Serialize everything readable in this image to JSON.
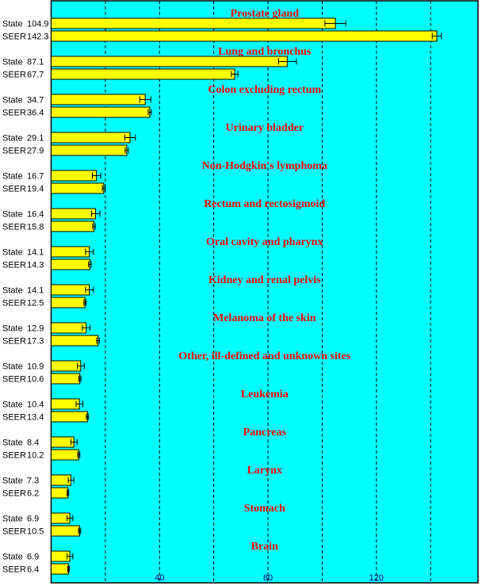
{
  "chart_data": {
    "type": "bar",
    "orientation": "horizontal",
    "xlim": [
      0,
      157.5
    ],
    "xticks": [
      40,
      80,
      120
    ],
    "gridlines": [
      20,
      40,
      60,
      80,
      100,
      120,
      140
    ],
    "grid": true,
    "colors": {
      "background": "#00ffff",
      "bar": "#ffff00",
      "title": "#ff0000",
      "tick": "#000080"
    },
    "series_labels": [
      "State",
      "SEER"
    ],
    "groups": [
      {
        "title": "Prostate gland",
        "state": 104.9,
        "state_ci": [
          101.0,
          108.7
        ],
        "seer": 142.3,
        "seer_ci": [
          140.6,
          144.0
        ]
      },
      {
        "title": "Lung and bronchus",
        "state": 87.1,
        "state_ci": [
          83.9,
          90.5
        ],
        "seer": 67.7,
        "seer_ci": [
          66.5,
          68.9
        ]
      },
      {
        "title": "Colon excluding rectum",
        "state": 34.7,
        "state_ci": [
          32.7,
          36.8
        ],
        "seer": 36.4,
        "seer_ci": [
          35.8,
          37.0
        ]
      },
      {
        "title": "Urinary bladder",
        "state": 29.1,
        "state_ci": [
          27.2,
          31.1
        ],
        "seer": 27.9,
        "seer_ci": [
          27.3,
          28.5
        ]
      },
      {
        "title": "Non-Hodgkin's lymphoma",
        "state": 16.7,
        "state_ci": [
          15.2,
          18.3
        ],
        "seer": 19.4,
        "seer_ci": [
          18.9,
          19.9
        ]
      },
      {
        "title": "Rectum and rectosigmoid",
        "state": 16.4,
        "state_ci": [
          14.9,
          18.0
        ],
        "seer": 15.8,
        "seer_ci": [
          15.3,
          16.3
        ]
      },
      {
        "title": "Oral cavity and pharynx",
        "state": 14.1,
        "state_ci": [
          12.7,
          15.6
        ],
        "seer": 14.3,
        "seer_ci": [
          13.8,
          14.8
        ]
      },
      {
        "title": "Kidney and renal pelvis",
        "state": 14.1,
        "state_ci": [
          12.7,
          15.6
        ],
        "seer": 12.5,
        "seer_ci": [
          12.1,
          12.9
        ]
      },
      {
        "title": "Melanoma of the skin",
        "state": 12.9,
        "state_ci": [
          11.5,
          14.4
        ],
        "seer": 17.3,
        "seer_ci": [
          16.8,
          17.8
        ]
      },
      {
        "title": "Other, ill-defined and unknown sites",
        "state": 10.9,
        "state_ci": [
          9.7,
          12.2
        ],
        "seer": 10.6,
        "seer_ci": [
          10.2,
          11.0
        ]
      },
      {
        "title": "Leukemia",
        "state": 10.4,
        "state_ci": [
          9.2,
          11.7
        ],
        "seer": 13.4,
        "seer_ci": [
          13.0,
          13.8
        ]
      },
      {
        "title": "Pancreas",
        "state": 8.4,
        "state_ci": [
          7.3,
          9.6
        ],
        "seer": 10.2,
        "seer_ci": [
          9.8,
          10.6
        ]
      },
      {
        "title": "Larynx",
        "state": 7.3,
        "state_ci": [
          6.3,
          8.4
        ],
        "seer": 6.2,
        "seer_ci": [
          5.9,
          6.5
        ]
      },
      {
        "title": "Stomach",
        "state": 6.9,
        "state_ci": [
          5.9,
          8.0
        ],
        "seer": 10.5,
        "seer_ci": [
          10.1,
          10.9
        ]
      },
      {
        "title": "Brain",
        "state": 6.9,
        "state_ci": [
          5.9,
          8.0
        ],
        "seer": 6.4,
        "seer_ci": [
          6.1,
          6.7
        ]
      }
    ]
  }
}
